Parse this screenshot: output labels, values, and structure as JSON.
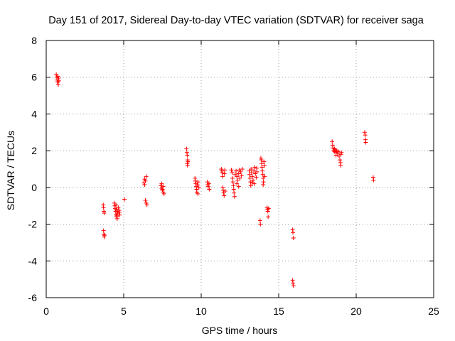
{
  "chart_data": {
    "type": "scatter",
    "title": "Day 151 of 2017, Sidereal Day-to-day VTEC variation (SDTVAR) for receiver saga",
    "xlabel": "GPS time / hours",
    "ylabel": "SDTVAR / TECUs",
    "xlim": [
      0,
      25
    ],
    "ylim": [
      -6,
      8
    ],
    "xticks": [
      0,
      5,
      10,
      15,
      20,
      25
    ],
    "yticks": [
      -6,
      -4,
      -2,
      0,
      2,
      4,
      6,
      8
    ],
    "grid": true,
    "marker": "+",
    "color": "#ff0000",
    "series": [
      {
        "name": "SDTVAR",
        "points": [
          [
            0.65,
            6.15
          ],
          [
            0.68,
            6.0
          ],
          [
            0.7,
            5.85
          ],
          [
            0.72,
            5.75
          ],
          [
            0.75,
            6.05
          ],
          [
            0.78,
            5.6
          ],
          [
            0.8,
            5.95
          ],
          [
            0.82,
            5.8
          ],
          [
            3.68,
            -0.95
          ],
          [
            3.7,
            -1.1
          ],
          [
            3.72,
            -1.3
          ],
          [
            3.74,
            -1.4
          ],
          [
            3.7,
            -2.35
          ],
          [
            3.72,
            -2.55
          ],
          [
            3.74,
            -2.7
          ],
          [
            3.76,
            -2.6
          ],
          [
            4.4,
            -0.85
          ],
          [
            4.42,
            -1.0
          ],
          [
            4.45,
            -1.15
          ],
          [
            4.48,
            -1.3
          ],
          [
            4.5,
            -1.45
          ],
          [
            4.52,
            -1.2
          ],
          [
            4.55,
            -1.55
          ],
          [
            4.58,
            -1.7
          ],
          [
            4.6,
            -1.3
          ],
          [
            4.62,
            -1.4
          ],
          [
            4.65,
            -1.1
          ],
          [
            4.7,
            -1.25
          ],
          [
            4.72,
            -1.35
          ],
          [
            4.75,
            -1.5
          ],
          [
            4.5,
            -0.95
          ],
          [
            4.55,
            -1.6
          ],
          [
            5.05,
            -0.65
          ],
          [
            6.3,
            0.25
          ],
          [
            6.35,
            0.45
          ],
          [
            6.4,
            0.35
          ],
          [
            6.45,
            0.6
          ],
          [
            6.35,
            0.15
          ],
          [
            6.4,
            -0.7
          ],
          [
            6.45,
            -0.85
          ],
          [
            6.5,
            -0.95
          ],
          [
            7.4,
            0.1
          ],
          [
            7.45,
            -0.05
          ],
          [
            7.5,
            -0.15
          ],
          [
            7.55,
            -0.25
          ],
          [
            7.45,
            0.2
          ],
          [
            7.6,
            -0.35
          ],
          [
            7.55,
            0.05
          ],
          [
            7.5,
            -0.1
          ],
          [
            9.05,
            2.1
          ],
          [
            9.08,
            1.9
          ],
          [
            9.1,
            1.75
          ],
          [
            9.12,
            1.5
          ],
          [
            9.15,
            1.4
          ],
          [
            9.1,
            1.3
          ],
          [
            9.12,
            1.2
          ],
          [
            9.6,
            0.5
          ],
          [
            9.62,
            0.35
          ],
          [
            9.65,
            0.2
          ],
          [
            9.68,
            0.05
          ],
          [
            9.7,
            -0.1
          ],
          [
            9.72,
            -0.25
          ],
          [
            9.75,
            0.15
          ],
          [
            9.78,
            -0.35
          ],
          [
            9.8,
            0.3
          ],
          [
            9.85,
            0.0
          ],
          [
            10.4,
            0.3
          ],
          [
            10.42,
            0.15
          ],
          [
            10.45,
            0.05
          ],
          [
            10.5,
            0.2
          ],
          [
            10.52,
            -0.1
          ],
          [
            11.3,
            1.0
          ],
          [
            11.32,
            0.9
          ],
          [
            11.35,
            0.8
          ],
          [
            11.38,
            0.6
          ],
          [
            11.4,
            0.0
          ],
          [
            11.42,
            -0.15
          ],
          [
            11.45,
            -0.3
          ],
          [
            11.48,
            -0.45
          ],
          [
            11.5,
            0.75
          ],
          [
            11.52,
            0.95
          ],
          [
            11.55,
            -0.2
          ],
          [
            11.95,
            0.95
          ],
          [
            12.0,
            0.8
          ],
          [
            12.02,
            0.5
          ],
          [
            12.05,
            0.3
          ],
          [
            12.08,
            0.1
          ],
          [
            12.1,
            -0.1
          ],
          [
            12.12,
            -0.3
          ],
          [
            12.15,
            -0.5
          ],
          [
            12.2,
            0.7
          ],
          [
            12.25,
            0.9
          ],
          [
            12.3,
            0.6
          ],
          [
            12.35,
            0.4
          ],
          [
            12.4,
            0.75
          ],
          [
            12.45,
            0.95
          ],
          [
            12.5,
            0.5
          ],
          [
            12.55,
            0.85
          ],
          [
            12.6,
            0.65
          ],
          [
            12.65,
            1.0
          ],
          [
            12.3,
            0.2
          ],
          [
            12.42,
            0.05
          ],
          [
            13.1,
            0.9
          ],
          [
            13.12,
            0.7
          ],
          [
            13.15,
            0.5
          ],
          [
            13.18,
            0.3
          ],
          [
            13.2,
            0.1
          ],
          [
            13.22,
            1.0
          ],
          [
            13.25,
            0.8
          ],
          [
            13.3,
            0.6
          ],
          [
            13.35,
            0.4
          ],
          [
            13.4,
            0.9
          ],
          [
            13.45,
            1.1
          ],
          [
            13.5,
            0.75
          ],
          [
            13.55,
            0.55
          ],
          [
            13.58,
            1.05
          ],
          [
            13.6,
            0.85
          ],
          [
            13.3,
            0.25
          ],
          [
            13.42,
            0.2
          ],
          [
            13.85,
            1.6
          ],
          [
            13.88,
            1.5
          ],
          [
            13.9,
            1.3
          ],
          [
            13.92,
            1.1
          ],
          [
            13.95,
            0.9
          ],
          [
            13.98,
            0.7
          ],
          [
            14.0,
            0.5
          ],
          [
            14.02,
            0.3
          ],
          [
            14.05,
            1.4
          ],
          [
            14.08,
            1.2
          ],
          [
            14.1,
            0.6
          ],
          [
            14.0,
            0.15
          ],
          [
            13.8,
            -1.8
          ],
          [
            13.82,
            -2.0
          ],
          [
            14.25,
            -1.1
          ],
          [
            14.28,
            -1.2
          ],
          [
            14.3,
            -1.3
          ],
          [
            14.32,
            -1.6
          ],
          [
            14.35,
            -1.15
          ],
          [
            15.9,
            -2.3
          ],
          [
            15.92,
            -2.45
          ],
          [
            15.95,
            -2.75
          ],
          [
            15.9,
            -5.05
          ],
          [
            15.92,
            -5.2
          ],
          [
            15.95,
            -5.35
          ],
          [
            18.45,
            2.5
          ],
          [
            18.48,
            2.3
          ],
          [
            18.5,
            2.15
          ],
          [
            18.55,
            2.0
          ],
          [
            18.6,
            1.95
          ],
          [
            18.65,
            2.05
          ],
          [
            18.7,
            1.9
          ],
          [
            18.75,
            2.0
          ],
          [
            18.8,
            1.85
          ],
          [
            18.85,
            1.95
          ],
          [
            18.9,
            1.7
          ],
          [
            18.95,
            1.5
          ],
          [
            18.98,
            1.35
          ],
          [
            19.0,
            1.2
          ],
          [
            19.05,
            1.9
          ],
          [
            19.02,
            1.8
          ],
          [
            18.6,
            2.1
          ],
          [
            18.7,
            1.75
          ],
          [
            20.55,
            3.0
          ],
          [
            20.58,
            2.85
          ],
          [
            20.6,
            2.6
          ],
          [
            20.62,
            2.45
          ],
          [
            21.1,
            0.55
          ],
          [
            21.12,
            0.4
          ]
        ]
      }
    ]
  }
}
